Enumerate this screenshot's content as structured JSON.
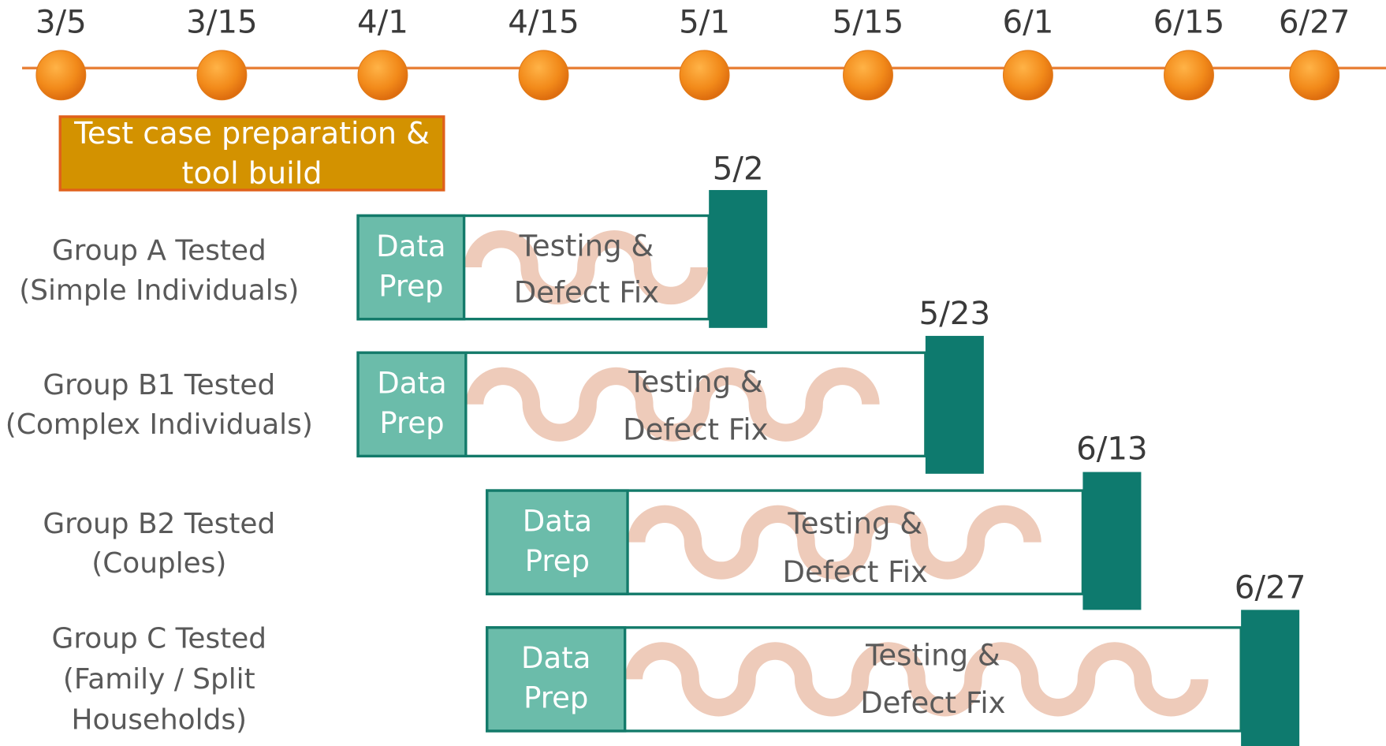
{
  "timeline": {
    "dates": [
      "3/5",
      "3/15",
      "4/1",
      "4/15",
      "5/1",
      "5/15",
      "6/1",
      "6/15",
      "6/27"
    ]
  },
  "prep_task": {
    "lines": [
      "Test case preparation &",
      "tool build"
    ]
  },
  "groups": [
    {
      "label_lines": [
        "Group A Tested",
        "(Simple Individuals)"
      ],
      "prep_lines": [
        "Data",
        "Prep"
      ],
      "testing_lines": [
        "Testing &",
        "Defect Fix"
      ],
      "end_date": "5/2"
    },
    {
      "label_lines": [
        "Group B1 Tested",
        "(Complex Individuals)"
      ],
      "prep_lines": [
        "Data",
        "Prep"
      ],
      "testing_lines": [
        "Testing &",
        "Defect Fix"
      ],
      "end_date": "5/23"
    },
    {
      "label_lines": [
        "Group B2 Tested",
        "(Couples)"
      ],
      "prep_lines": [
        "Data",
        "Prep"
      ],
      "testing_lines": [
        "Testing &",
        "Defect Fix"
      ],
      "end_date": "6/13"
    },
    {
      "label_lines": [
        "Group C Tested",
        "(Family / Split",
        "Households)"
      ],
      "prep_lines": [
        "Data",
        "Prep"
      ],
      "testing_lines": [
        "Testing &",
        "Defect Fix"
      ],
      "end_date": "6/27"
    }
  ]
}
